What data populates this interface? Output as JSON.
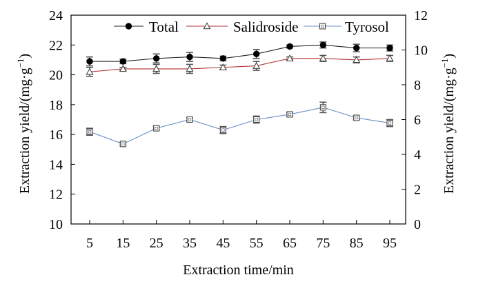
{
  "chart_data": {
    "type": "line",
    "xlabel": "Extraction time/min",
    "ylabel_left": "Extraction yield/(mg·g",
    "ylabel_right": "Extraction yield/(mg·g",
    "ylabel_superscript": "−1",
    "ylabel_close": ")",
    "x": [
      5,
      15,
      25,
      35,
      45,
      55,
      65,
      75,
      85,
      95
    ],
    "x_ticks": [
      "5",
      "15",
      "25",
      "35",
      "45",
      "55",
      "65",
      "75",
      "85",
      "95"
    ],
    "ylim_left": [
      10,
      24
    ],
    "yticks_left": [
      "10",
      "12",
      "14",
      "16",
      "18",
      "20",
      "22",
      "24"
    ],
    "ylim_right": [
      0,
      12
    ],
    "yticks_right": [
      "0",
      "2",
      "4",
      "6",
      "8",
      "10",
      "12"
    ],
    "legend_position": "top",
    "series": [
      {
        "name": "Total",
        "axis": "left",
        "marker": "circle-filled",
        "color": "#000000",
        "line_color": "#222222",
        "values": [
          20.9,
          20.9,
          21.1,
          21.2,
          21.1,
          21.4,
          21.9,
          22.0,
          21.8,
          21.8
        ],
        "errors": [
          0.3,
          0.15,
          0.3,
          0.3,
          0.15,
          0.3,
          0.1,
          0.2,
          0.25,
          0.2
        ]
      },
      {
        "name": "Salidroside",
        "axis": "left",
        "marker": "triangle-open",
        "color": "#444444",
        "line_color": "#b03030",
        "values": [
          20.2,
          20.4,
          20.4,
          20.4,
          20.5,
          20.6,
          21.1,
          21.1,
          21.0,
          21.1
        ],
        "errors": [
          0.3,
          0.1,
          0.3,
          0.3,
          0.15,
          0.3,
          0.1,
          0.2,
          0.2,
          0.2
        ]
      },
      {
        "name": "Tyrosol",
        "axis": "right",
        "marker": "square-open",
        "color": "#444444",
        "line_color": "#6a8fc8",
        "values": [
          5.3,
          4.6,
          5.5,
          6.0,
          5.4,
          6.0,
          6.3,
          6.7,
          6.1,
          5.8
        ],
        "errors": [
          0.2,
          0.1,
          0.1,
          0.1,
          0.2,
          0.2,
          0.1,
          0.3,
          0.1,
          0.2
        ]
      }
    ]
  }
}
